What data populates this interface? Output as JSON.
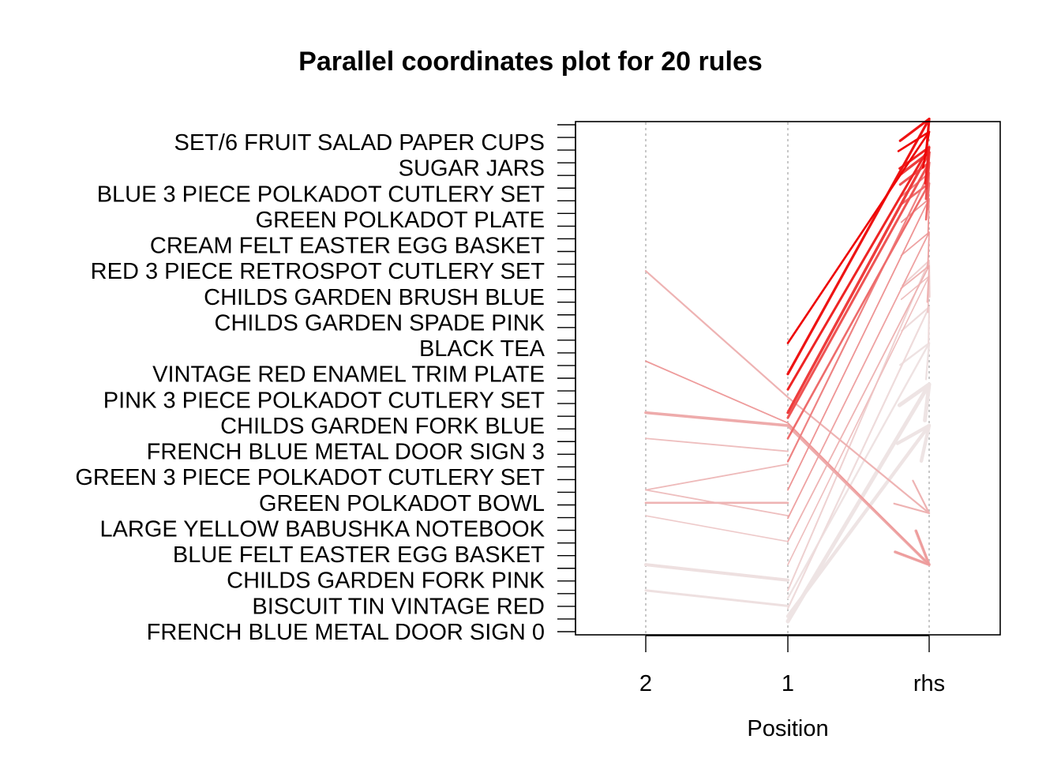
{
  "chart_data": {
    "type": "parallel-coordinates",
    "title": "Parallel coordinates plot for 20 rules",
    "xlabel": "Position",
    "axes": [
      "2",
      "1",
      "rhs"
    ],
    "items": [
      "SET/6 FRUIT SALAD PAPER CUPS",
      "SUGAR JARS",
      "BLUE 3 PIECE POLKADOT CUTLERY SET",
      "GREEN POLKADOT PLATE",
      "CREAM FELT EASTER EGG BASKET",
      "RED 3 PIECE RETROSPOT CUTLERY SET",
      "CHILDS GARDEN BRUSH BLUE",
      "CHILDS GARDEN SPADE PINK",
      "BLACK TEA",
      "VINTAGE RED ENAMEL TRIM PLATE",
      "PINK 3 PIECE POLKADOT CUTLERY SET",
      "CHILDS GARDEN FORK BLUE",
      "FRENCH BLUE METAL DOOR SIGN 3",
      "GREEN 3 PIECE POLKADOT CUTLERY SET",
      "GREEN POLKADOT BOWL",
      "LARGE YELLOW BABUSHKA NOTEBOOK",
      "BLUE FELT EASTER EGG BASKET",
      "CHILDS GARDEN FORK PINK",
      "BISCUIT TIN VINTAGE RED",
      "FRENCH BLUE METAL DOOR SIGN 0"
    ],
    "color_scale": {
      "low": "#EEEEEE",
      "high": "#EE0000"
    },
    "grid": true,
    "rules": [
      {
        "path": [
          null,
          11.2,
          19.4
        ],
        "shade": 0.98,
        "width": 2.6
      },
      {
        "path": [
          null,
          10.0,
          19.9
        ],
        "shade": 0.92,
        "width": 3.2
      },
      {
        "path": [
          null,
          9.4,
          18.8
        ],
        "shade": 0.85,
        "width": 3.0
      },
      {
        "path": [
          null,
          8.5,
          18.6
        ],
        "shade": 0.75,
        "width": 3.4
      },
      {
        "path": [
          null,
          8.3,
          18.2
        ],
        "shade": 0.65,
        "width": 3.0
      },
      {
        "path": [
          null,
          7.5,
          17.4
        ],
        "shade": 0.55,
        "width": 2.6
      },
      {
        "path": [
          null,
          6.6,
          17.8
        ],
        "shade": 0.45,
        "width": 2.2
      },
      {
        "path": [
          null,
          5.5,
          16.8
        ],
        "shade": 0.38,
        "width": 1.8
      },
      {
        "path": [
          null,
          4.4,
          15.5
        ],
        "shade": 0.32,
        "width": 1.8
      },
      {
        "path": [
          null,
          3.5,
          14.2
        ],
        "shade": 0.25,
        "width": 1.8
      },
      {
        "path": [
          null,
          2.6,
          13.8
        ],
        "shade": 0.2,
        "width": 1.6
      },
      {
        "path": [
          null,
          1.6,
          14.4
        ],
        "shade": 0.12,
        "width": 2.0
      },
      {
        "path": [
          null,
          0.9,
          12.6
        ],
        "shade": 0.08,
        "width": 2.2
      },
      {
        "path": [
          null,
          0.4,
          9.6
        ],
        "shade": 0.04,
        "width": 5.0
      },
      {
        "path": [
          null,
          0.6,
          8.0
        ],
        "shade": 0.04,
        "width": 4.4
      },
      {
        "path": [
          null,
          1.3,
          11.2
        ],
        "shade": 0.05,
        "width": 2.4
      },
      {
        "path": [
          14.0,
          9.1,
          4.6
        ],
        "shade": 0.25,
        "width": 2.2
      },
      {
        "path": [
          10.5,
          8.1,
          2.6
        ],
        "shade": 0.35,
        "width": 1.8
      },
      {
        "path": [
          8.5,
          8.0,
          2.6
        ],
        "shade": 0.28,
        "width": 3.6
      },
      {
        "path": [
          7.5,
          7.0,
          null
        ],
        "shade": 0.2,
        "width": 1.8
      },
      {
        "path": [
          5.5,
          6.5,
          null
        ],
        "shade": 0.22,
        "width": 1.8
      },
      {
        "path": [
          5.0,
          5.0,
          null
        ],
        "shade": 0.25,
        "width": 2.6
      },
      {
        "path": [
          5.5,
          4.5,
          null
        ],
        "shade": 0.2,
        "width": 1.8
      },
      {
        "path": [
          4.5,
          3.5,
          null
        ],
        "shade": 0.15,
        "width": 1.6
      },
      {
        "path": [
          2.6,
          2.0,
          null
        ],
        "shade": 0.06,
        "width": 4.0
      },
      {
        "path": [
          1.6,
          1.0,
          null
        ],
        "shade": 0.06,
        "width": 3.0
      }
    ]
  }
}
